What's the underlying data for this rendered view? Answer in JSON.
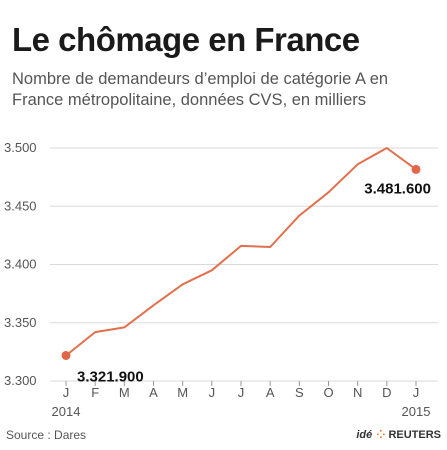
{
  "title": "Le chômage en France",
  "subtitle": "Nombre de demandeurs d’emploi de catégorie A en France métropolitaine, données CVS, en milliers",
  "source": "Source : Dares",
  "credit": {
    "ide": "idé",
    "brand": "REUTERS"
  },
  "colors": {
    "line": "#e2704d",
    "point": "#e0674a",
    "grid": "#d9d9d9",
    "axis": "#999999"
  },
  "chart_data": {
    "type": "line",
    "title": "Le chômage en France",
    "x": [
      "J",
      "F",
      "M",
      "A",
      "M",
      "J",
      "J",
      "A",
      "S",
      "O",
      "N",
      "D",
      "J"
    ],
    "x_years": [
      {
        "index": 0,
        "label": "2014"
      },
      {
        "index": 12,
        "label": "2015"
      }
    ],
    "series": [
      {
        "values": [
          3321.9,
          3342,
          3346,
          3365,
          3383,
          3395,
          3416,
          3415,
          3442,
          3462,
          3486,
          3500,
          3481.6
        ]
      }
    ],
    "ylim": [
      3300,
      3500
    ],
    "yticks": [
      3300,
      3350,
      3400,
      3450,
      3500
    ],
    "ytick_labels": [
      "3.300",
      "3.350",
      "3.400",
      "3.450",
      "3.500"
    ],
    "grid": "horizontal",
    "annotations": [
      {
        "index": 0,
        "text": "3.321.900",
        "position": "below-right"
      },
      {
        "index": 12,
        "text": "3.481.600",
        "position": "above-left"
      }
    ]
  }
}
